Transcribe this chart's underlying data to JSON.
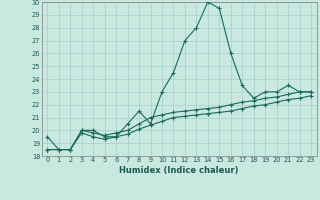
{
  "xlabel": "Humidex (Indice chaleur)",
  "ylabel": "",
  "background_color": "#c8e8e0",
  "grid_color": "#a8d4cc",
  "line_color": "#1a6b5a",
  "x": [
    0,
    1,
    2,
    3,
    4,
    5,
    6,
    7,
    8,
    9,
    10,
    11,
    12,
    13,
    14,
    15,
    16,
    17,
    18,
    19,
    20,
    21,
    22,
    23
  ],
  "y_main": [
    19.5,
    18.5,
    18.5,
    20.0,
    20.0,
    19.5,
    19.5,
    20.5,
    21.5,
    20.5,
    23.0,
    24.5,
    27.0,
    28.0,
    30.0,
    29.5,
    26.0,
    23.5,
    22.5,
    23.0,
    23.0,
    23.5,
    23.0,
    23.0
  ],
  "y_line2": [
    18.5,
    18.5,
    18.5,
    20.0,
    19.8,
    19.6,
    19.8,
    20.0,
    20.5,
    21.0,
    21.2,
    21.4,
    21.5,
    21.6,
    21.7,
    21.8,
    22.0,
    22.2,
    22.3,
    22.5,
    22.6,
    22.8,
    23.0,
    23.0
  ],
  "y_line3": [
    18.5,
    18.5,
    18.5,
    19.8,
    19.5,
    19.3,
    19.5,
    19.7,
    20.1,
    20.4,
    20.7,
    21.0,
    21.1,
    21.2,
    21.3,
    21.4,
    21.5,
    21.7,
    21.9,
    22.0,
    22.2,
    22.4,
    22.5,
    22.7
  ],
  "ylim": [
    18,
    30
  ],
  "xlim": [
    -0.5,
    23.5
  ],
  "yticks": [
    18,
    19,
    20,
    21,
    22,
    23,
    24,
    25,
    26,
    27,
    28,
    29,
    30
  ],
  "xtick_labels": [
    "0",
    "1",
    "2",
    "3",
    "4",
    "5",
    "6",
    "7",
    "8",
    "9",
    "10",
    "11",
    "12",
    "13",
    "14",
    "15",
    "16",
    "17",
    "18",
    "19",
    "20",
    "21",
    "22",
    "23"
  ]
}
